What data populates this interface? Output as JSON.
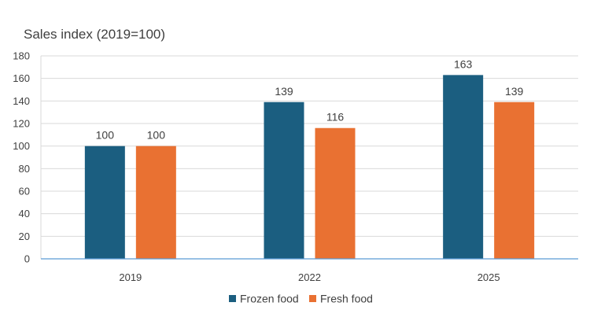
{
  "chart_data": {
    "type": "bar",
    "title": "",
    "ylabel": "Sales index (2019=100)",
    "xlabel": "",
    "categories": [
      "2019",
      "2022",
      "2025"
    ],
    "ylim": [
      0,
      180
    ],
    "yticks": [
      0,
      20,
      40,
      60,
      80,
      100,
      120,
      140,
      160,
      180
    ],
    "grid": true,
    "legend_position": "bottom",
    "series": [
      {
        "name": "Frozen food",
        "color": "#1b5e80",
        "values": [
          100,
          139,
          163
        ]
      },
      {
        "name": "Fresh food",
        "color": "#e97132",
        "values": [
          100,
          116,
          139
        ]
      }
    ]
  }
}
